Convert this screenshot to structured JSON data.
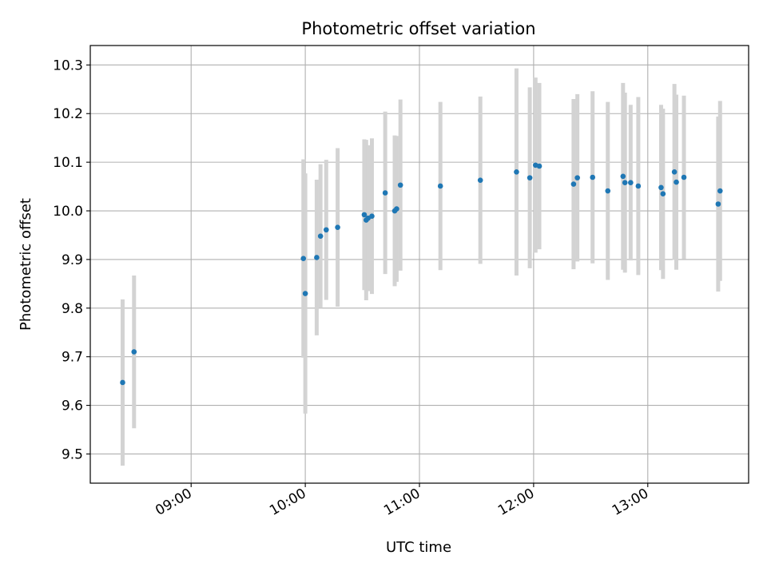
{
  "chart_data": {
    "type": "scatter",
    "title": "Photometric offset variation",
    "xlabel": "UTC time",
    "ylabel": "Photometric offset",
    "x_axis_type": "time",
    "xlim": [
      "08:07",
      "13:53"
    ],
    "ylim": [
      9.44,
      10.34
    ],
    "x_ticks": [
      "09:00",
      "10:00",
      "11:00",
      "12:00",
      "13:00"
    ],
    "y_ticks": [
      "9.5",
      "9.6",
      "9.7",
      "9.8",
      "9.9",
      "10.0",
      "10.1",
      "10.2",
      "10.3"
    ],
    "grid": true,
    "point_color": "#1f77b4",
    "errorbar_color": "#d3d3d3",
    "points": [
      {
        "x": "08:24",
        "y": 9.647,
        "yerr": 0.171
      },
      {
        "x": "08:30",
        "y": 9.71,
        "yerr": 0.157
      },
      {
        "x": "09:59",
        "y": 9.902,
        "yerr": 0.204
      },
      {
        "x": "10:00",
        "y": 9.83,
        "yerr": 0.247
      },
      {
        "x": "10:06",
        "y": 9.904,
        "yerr": 0.16
      },
      {
        "x": "10:08",
        "y": 9.948,
        "yerr": 0.148
      },
      {
        "x": "10:11",
        "y": 9.961,
        "yerr": 0.144
      },
      {
        "x": "10:17",
        "y": 9.966,
        "yerr": 0.163
      },
      {
        "x": "10:31",
        "y": 9.992,
        "yerr": 0.155
      },
      {
        "x": "10:32",
        "y": 9.981,
        "yerr": 0.165
      },
      {
        "x": "10:33",
        "y": 9.985,
        "yerr": 0.15
      },
      {
        "x": "10:35",
        "y": 9.989,
        "yerr": 0.16
      },
      {
        "x": "10:42",
        "y": 10.037,
        "yerr": 0.167
      },
      {
        "x": "10:47",
        "y": 10.0,
        "yerr": 0.155
      },
      {
        "x": "10:48",
        "y": 10.004,
        "yerr": 0.15
      },
      {
        "x": "10:50",
        "y": 10.053,
        "yerr": 0.176
      },
      {
        "x": "11:11",
        "y": 10.051,
        "yerr": 0.173
      },
      {
        "x": "11:32",
        "y": 10.063,
        "yerr": 0.172
      },
      {
        "x": "11:51",
        "y": 10.08,
        "yerr": 0.213
      },
      {
        "x": "11:58",
        "y": 10.068,
        "yerr": 0.186
      },
      {
        "x": "12:01",
        "y": 10.094,
        "yerr": 0.18
      },
      {
        "x": "12:03",
        "y": 10.092,
        "yerr": 0.171
      },
      {
        "x": "12:21",
        "y": 10.055,
        "yerr": 0.175
      },
      {
        "x": "12:23",
        "y": 10.068,
        "yerr": 0.172
      },
      {
        "x": "12:31",
        "y": 10.069,
        "yerr": 0.177
      },
      {
        "x": "12:39",
        "y": 10.041,
        "yerr": 0.183
      },
      {
        "x": "12:47",
        "y": 10.071,
        "yerr": 0.192
      },
      {
        "x": "12:48",
        "y": 10.058,
        "yerr": 0.185
      },
      {
        "x": "12:51",
        "y": 10.058,
        "yerr": 0.16
      },
      {
        "x": "12:55",
        "y": 10.051,
        "yerr": 0.183
      },
      {
        "x": "13:07",
        "y": 10.048,
        "yerr": 0.17
      },
      {
        "x": "13:08",
        "y": 10.035,
        "yerr": 0.175
      },
      {
        "x": "13:14",
        "y": 10.08,
        "yerr": 0.181
      },
      {
        "x": "13:15",
        "y": 10.059,
        "yerr": 0.18
      },
      {
        "x": "13:19",
        "y": 10.069,
        "yerr": 0.168
      },
      {
        "x": "13:37",
        "y": 10.014,
        "yerr": 0.18
      },
      {
        "x": "13:38",
        "y": 10.041,
        "yerr": 0.185
      }
    ]
  }
}
